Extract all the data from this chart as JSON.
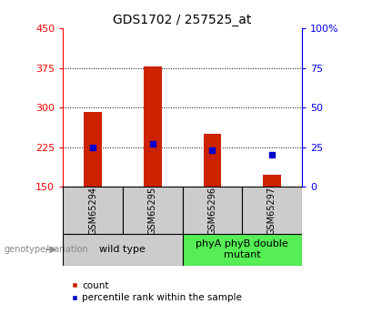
{
  "title": "GDS1702 / 257525_at",
  "categories": [
    "GSM65294",
    "GSM65295",
    "GSM65296",
    "GSM65297"
  ],
  "bar_values": [
    291,
    378,
    251,
    173
  ],
  "percentile_values": [
    25,
    27,
    23,
    20
  ],
  "left_ylim": [
    150,
    450
  ],
  "left_yticks": [
    150,
    225,
    300,
    375,
    450
  ],
  "right_ylim": [
    0,
    100
  ],
  "right_yticks": [
    0,
    25,
    50,
    75,
    100
  ],
  "bar_color": "#cc2200",
  "marker_color": "#0000cc",
  "bar_bottom": 150,
  "groups": [
    {
      "label": "wild type",
      "indices": [
        0,
        1
      ],
      "color": "#cccccc"
    },
    {
      "label": "phyA phyB double\nmutant",
      "indices": [
        2,
        3
      ],
      "color": "#55ee55"
    }
  ],
  "group_label_prefix": "genotype/variation",
  "legend_count_label": "count",
  "legend_percentile_label": "percentile rank within the sample",
  "title_fontsize": 10,
  "tick_fontsize": 8,
  "cat_fontsize": 7,
  "group_fontsize": 8,
  "legend_fontsize": 7.5,
  "plot_bg_color": "#ffffff",
  "outer_bg_color": "#ffffff",
  "sample_box_color": "#cccccc",
  "bar_width": 0.3
}
